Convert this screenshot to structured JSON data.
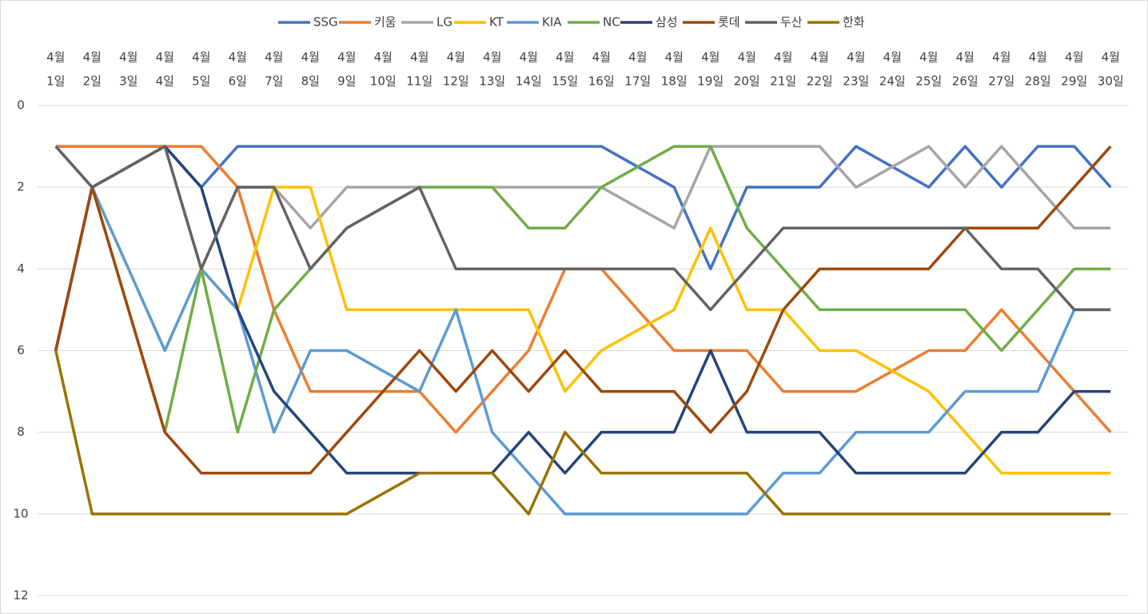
{
  "chart_data": {
    "type": "line",
    "categories": [
      [
        "4월",
        "1일"
      ],
      [
        "4월",
        "2일"
      ],
      [
        "4월",
        "3일"
      ],
      [
        "4월",
        "4일"
      ],
      [
        "4월",
        "5일"
      ],
      [
        "4월",
        "6일"
      ],
      [
        "4월",
        "7일"
      ],
      [
        "4월",
        "8일"
      ],
      [
        "4월",
        "9일"
      ],
      [
        "4월",
        "10일"
      ],
      [
        "4월",
        "11일"
      ],
      [
        "4월",
        "12일"
      ],
      [
        "4월",
        "13일"
      ],
      [
        "4월",
        "14일"
      ],
      [
        "4월",
        "15일"
      ],
      [
        "4월",
        "16일"
      ],
      [
        "4월",
        "17일"
      ],
      [
        "4월",
        "18일"
      ],
      [
        "4월",
        "19일"
      ],
      [
        "4월",
        "20일"
      ],
      [
        "4월",
        "21일"
      ],
      [
        "4월",
        "22일"
      ],
      [
        "4월",
        "23일"
      ],
      [
        "4월",
        "24일"
      ],
      [
        "4월",
        "25일"
      ],
      [
        "4월",
        "26일"
      ],
      [
        "4월",
        "27일"
      ],
      [
        "4월",
        "28일"
      ],
      [
        "4월",
        "29일"
      ],
      [
        "4월",
        "30일"
      ]
    ],
    "series": [
      {
        "name": "SSG",
        "color": "#4472c4",
        "values": [
          1,
          1,
          1,
          1,
          2,
          1,
          1,
          1,
          1,
          1,
          1,
          1,
          1,
          1,
          1,
          1,
          1.5,
          2,
          4,
          2,
          2,
          2,
          1,
          1.5,
          2,
          1,
          2,
          1,
          1,
          2
        ]
      },
      {
        "name": "키움",
        "color": "#ed7d31",
        "values": [
          1,
          1,
          1,
          1,
          1,
          2,
          5,
          7,
          7,
          7,
          7,
          8,
          7,
          6,
          4,
          4,
          5,
          6,
          6,
          6,
          7,
          7,
          7,
          6.5,
          6,
          6,
          5,
          6,
          7,
          8
        ]
      },
      {
        "name": "LG",
        "color": "#a5a5a5",
        "values": [
          1,
          2,
          1.5,
          1,
          4,
          2,
          2,
          3,
          2,
          2,
          2,
          2,
          2,
          2,
          2,
          2,
          2.5,
          3,
          1,
          1,
          1,
          1,
          2,
          1.5,
          1,
          2,
          1,
          2,
          3,
          3
        ]
      },
      {
        "name": "KT",
        "color": "#ffc000",
        "values": [
          6,
          2,
          4,
          6,
          4,
          5,
          2,
          2,
          5,
          5,
          5,
          5,
          5,
          5,
          7,
          6,
          5.5,
          5,
          3,
          5,
          5,
          6,
          6,
          6.5,
          7,
          8,
          9,
          9,
          9,
          9
        ]
      },
      {
        "name": "KIA",
        "color": "#5b9bd5",
        "values": [
          6,
          2,
          4,
          6,
          4,
          5,
          8,
          6,
          6,
          6.5,
          7,
          5,
          8,
          9,
          10,
          10,
          10,
          10,
          10,
          10,
          9,
          9,
          8,
          8,
          8,
          7,
          7,
          7,
          5,
          5
        ]
      },
      {
        "name": "NC",
        "color": "#70ad47",
        "values": [
          6,
          2,
          5,
          8,
          4,
          8,
          5,
          4,
          3,
          2.5,
          2,
          2,
          2,
          3,
          3,
          2,
          1.5,
          1,
          1,
          3,
          4,
          5,
          5,
          5,
          5,
          5,
          6,
          5,
          4,
          4
        ]
      },
      {
        "name": "삼성",
        "color": "#264478",
        "values": [
          6,
          2,
          1.5,
          1,
          2,
          5,
          7,
          8,
          9,
          9,
          9,
          9,
          9,
          8,
          9,
          8,
          8,
          8,
          6,
          8,
          8,
          8,
          9,
          9,
          9,
          9,
          8,
          8,
          7,
          7
        ]
      },
      {
        "name": "롯데",
        "color": "#9e480e",
        "values": [
          6,
          2,
          5,
          8,
          9,
          9,
          9,
          9,
          8,
          7,
          6,
          7,
          6,
          7,
          6,
          7,
          7,
          7,
          8,
          7,
          5,
          4,
          4,
          4,
          4,
          3,
          3,
          3,
          2,
          1
        ]
      },
      {
        "name": "두산",
        "color": "#636363",
        "values": [
          1,
          2,
          1.5,
          1,
          4,
          2,
          2,
          4,
          3,
          2.5,
          2,
          4,
          4,
          4,
          4,
          4,
          4,
          4,
          5,
          4,
          3,
          3,
          3,
          3,
          3,
          3,
          4,
          4,
          5,
          5
        ]
      },
      {
        "name": "한화",
        "color": "#997300",
        "values": [
          6,
          10,
          10,
          10,
          10,
          10,
          10,
          10,
          10,
          9.5,
          9,
          9,
          9,
          10,
          8,
          9,
          9,
          9,
          9,
          9,
          10,
          10,
          10,
          10,
          10,
          10,
          10,
          10,
          10,
          10
        ]
      }
    ],
    "ylim": [
      0,
      12
    ],
    "y_reversed": true,
    "yticks": [
      0,
      2,
      4,
      6,
      8,
      10,
      12
    ],
    "grid": true,
    "legend": "top"
  }
}
